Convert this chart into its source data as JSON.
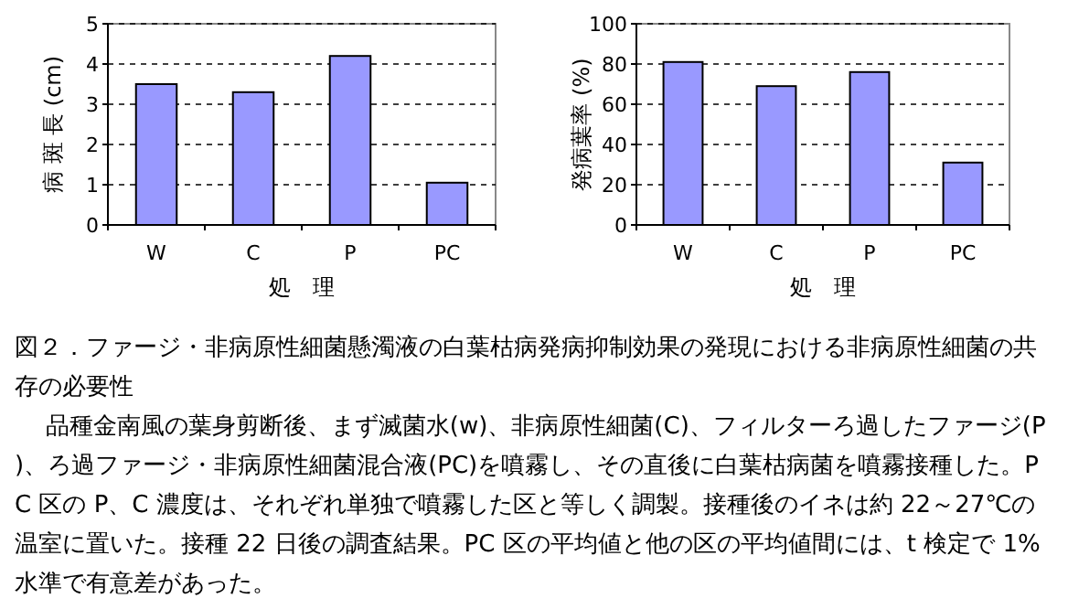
{
  "chart_data": [
    {
      "type": "bar",
      "ylabel": "病 斑 長 (cm)",
      "xlabel": "処　理",
      "categories": [
        "W",
        "C",
        "P",
        "PC"
      ],
      "values": [
        3.5,
        3.3,
        4.2,
        1.05
      ],
      "color": "#9999ff",
      "ylim": [
        0,
        5
      ],
      "yticks": [
        0,
        1,
        2,
        3,
        4,
        5
      ],
      "grid": "y"
    },
    {
      "type": "bar",
      "ylabel": "発病葉率 (%)",
      "xlabel": "処　理",
      "categories": [
        "W",
        "C",
        "P",
        "PC"
      ],
      "values": [
        81,
        69,
        76,
        31
      ],
      "color": "#9999ff",
      "ylim": [
        0,
        100
      ],
      "yticks": [
        0,
        20,
        40,
        60,
        80,
        100
      ],
      "grid": "y"
    },
    {
      "type": "other",
      "title": "図２．ファージ・非病原性細菌懸濁液の白葉枯病発病抑制効果の発現における非病原性細菌の共存の必要性",
      "annotations": [
        "品種金南風の葉身剪断後、まず滅菌水(w)、非病原性細菌(C)、フィルターろ過したファージ(P)、ろ過ファージ・非病原性細菌混合液(PC)を噴霧し、その直後に白葉枯病菌を噴霧接種した。PC 区の P、C 濃度は、それぞれ単独で噴霧した区と等しく調製。接種後のイネは約 22～27℃の温室に置いた。接種 22 日後の調査結果。PC 区の平均値と他の区の平均値間には、t 検定で 1%水準で有意差があった。"
      ]
    }
  ]
}
